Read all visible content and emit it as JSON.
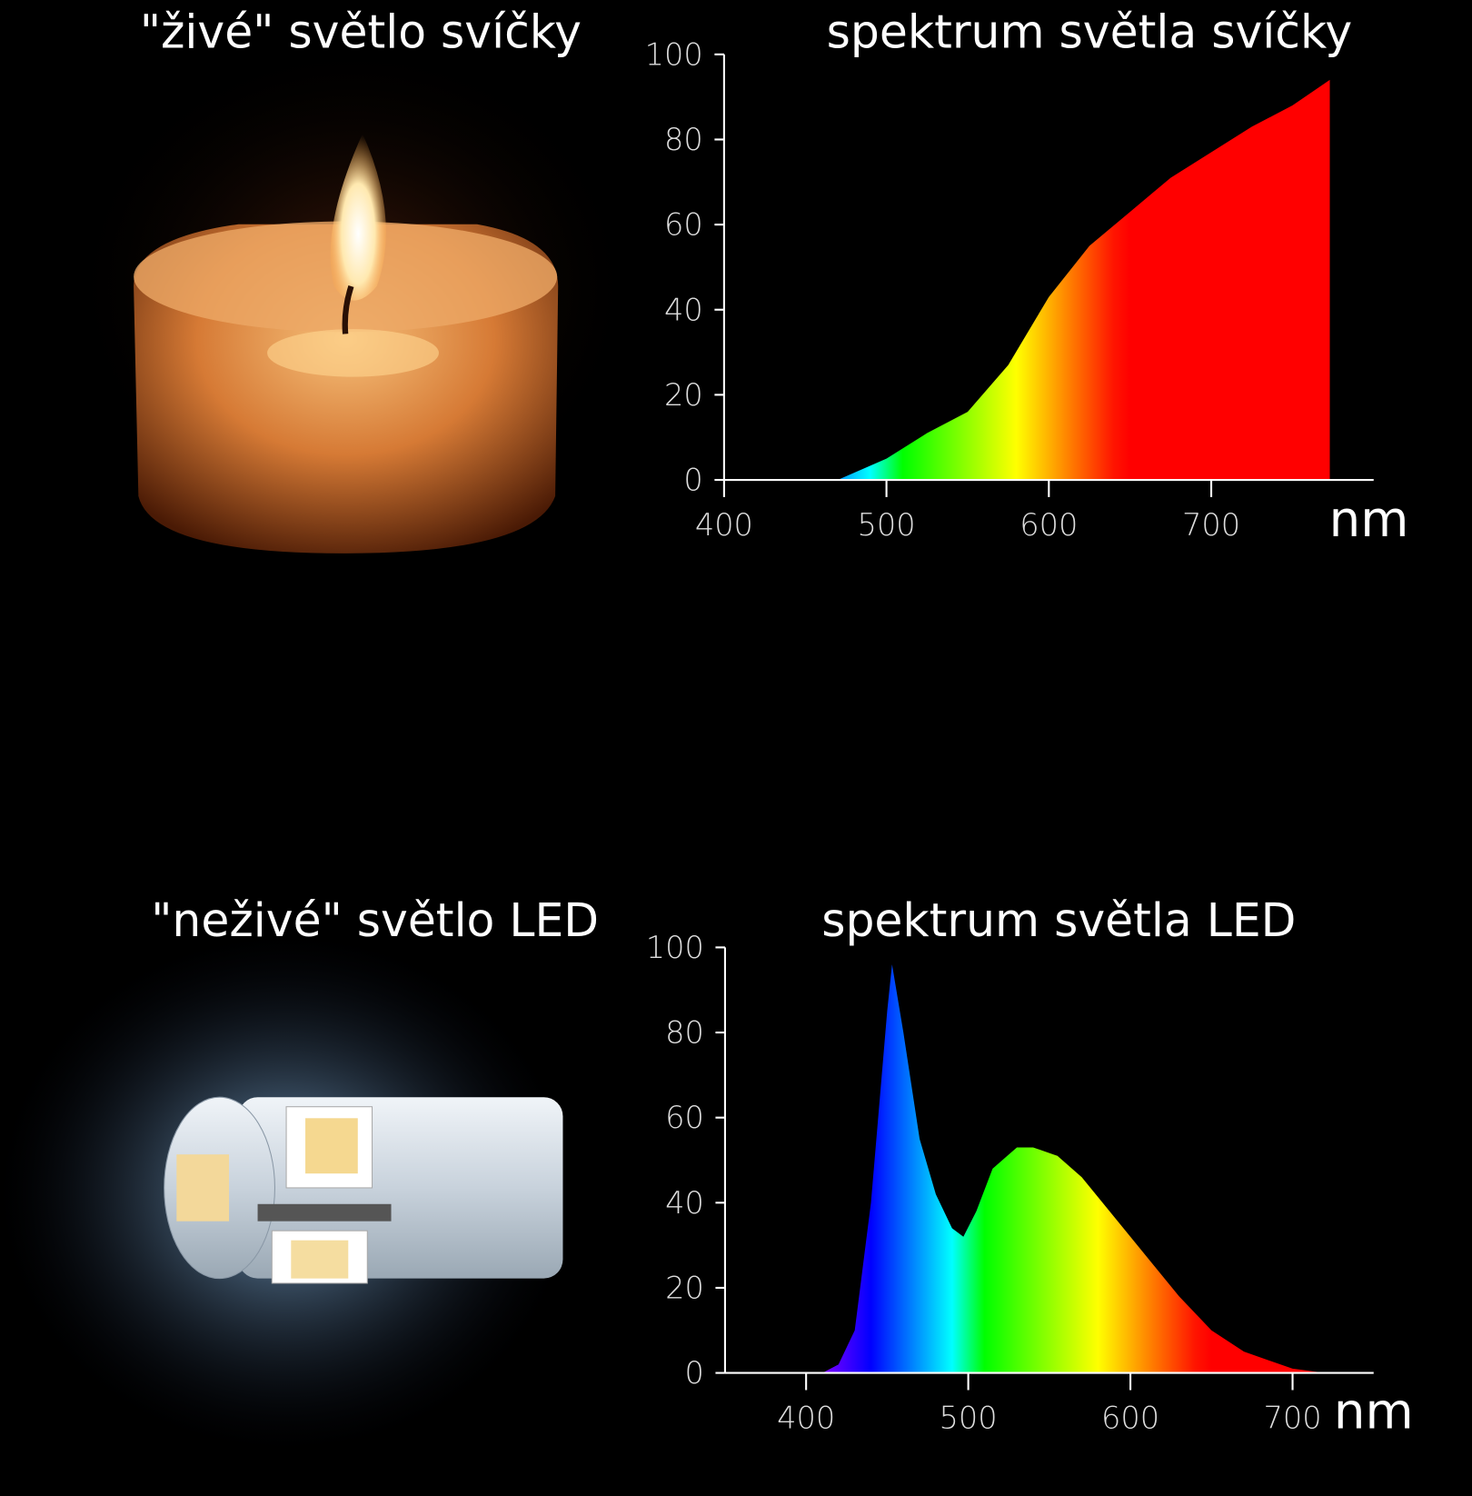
{
  "photos": [
    {
      "caption": "\"živé\" světlo svíčky"
    },
    {
      "caption": "\"neživé\" světlo LED"
    }
  ],
  "chart_data": [
    {
      "type": "area",
      "title": "spektrum světla svíčky",
      "xlabel": "nm",
      "x": [
        460,
        470,
        500,
        525,
        550,
        575,
        600,
        625,
        650,
        675,
        700,
        725,
        750,
        773
      ],
      "values": [
        0,
        0,
        5,
        11,
        16,
        27,
        43,
        55,
        63,
        71,
        77,
        83,
        88,
        94
      ],
      "xlim": [
        400,
        800
      ],
      "xticks": [
        400,
        500,
        600,
        700
      ],
      "ylim": [
        0,
        100
      ],
      "yticks": [
        0,
        20,
        40,
        60,
        80,
        100
      ]
    },
    {
      "type": "area",
      "title": "spektrum světla LED",
      "xlabel": "nm",
      "x": [
        410,
        420,
        430,
        440,
        450,
        453,
        460,
        470,
        480,
        490,
        497,
        505,
        515,
        530,
        540,
        555,
        570,
        600,
        630,
        650,
        670,
        700,
        720
      ],
      "values": [
        0,
        2,
        10,
        40,
        85,
        96,
        80,
        55,
        42,
        34,
        32,
        38,
        48,
        53,
        53,
        51,
        46,
        32,
        18,
        10,
        5,
        1,
        0
      ],
      "xlim": [
        350,
        750
      ],
      "xticks": [
        400,
        500,
        600,
        700
      ],
      "ylim": [
        0,
        100
      ],
      "yticks": [
        0,
        20,
        40,
        60,
        80,
        100
      ]
    }
  ]
}
